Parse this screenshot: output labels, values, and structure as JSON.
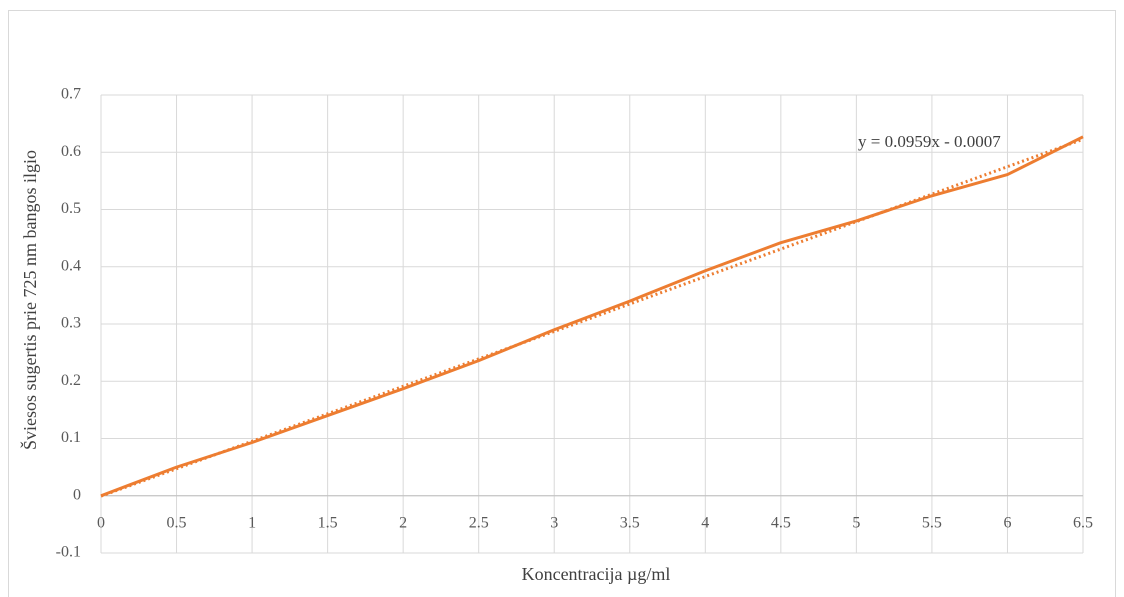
{
  "chart_data": {
    "type": "line",
    "x_label": "Koncentracija  µg/ml",
    "y_label": "Šviesos sugertis prie 725 nm bangos ilgio",
    "annotation": "y = 0.0959x - 0.0007",
    "x": [
      0,
      0.5,
      1,
      1.5,
      2,
      2.5,
      3,
      3.5,
      4,
      4.5,
      5,
      5.5,
      6,
      6.5
    ],
    "series": [
      {
        "color": "#ed7d31",
        "values": [
          0,
          0.05,
          0.093,
          0.14,
          0.187,
          0.236,
          0.29,
          0.34,
          0.393,
          0.442,
          0.48,
          0.524,
          0.561,
          0.627
        ]
      }
    ],
    "trendline": {
      "color": "#ed7d31",
      "x": [
        0,
        6.5
      ],
      "values": [
        -0.0007,
        0.6227
      ]
    },
    "xlim": [
      0,
      6.5
    ],
    "xticks": [
      0,
      0.5,
      1,
      1.5,
      2,
      2.5,
      3,
      3.5,
      4,
      4.5,
      5,
      5.5,
      6,
      6.5
    ],
    "ylim": [
      -0.1,
      0.7
    ],
    "yticks": [
      -0.1,
      0,
      0.1,
      0.2,
      0.3,
      0.4,
      0.5,
      0.6,
      0.7
    ],
    "grid": true
  }
}
